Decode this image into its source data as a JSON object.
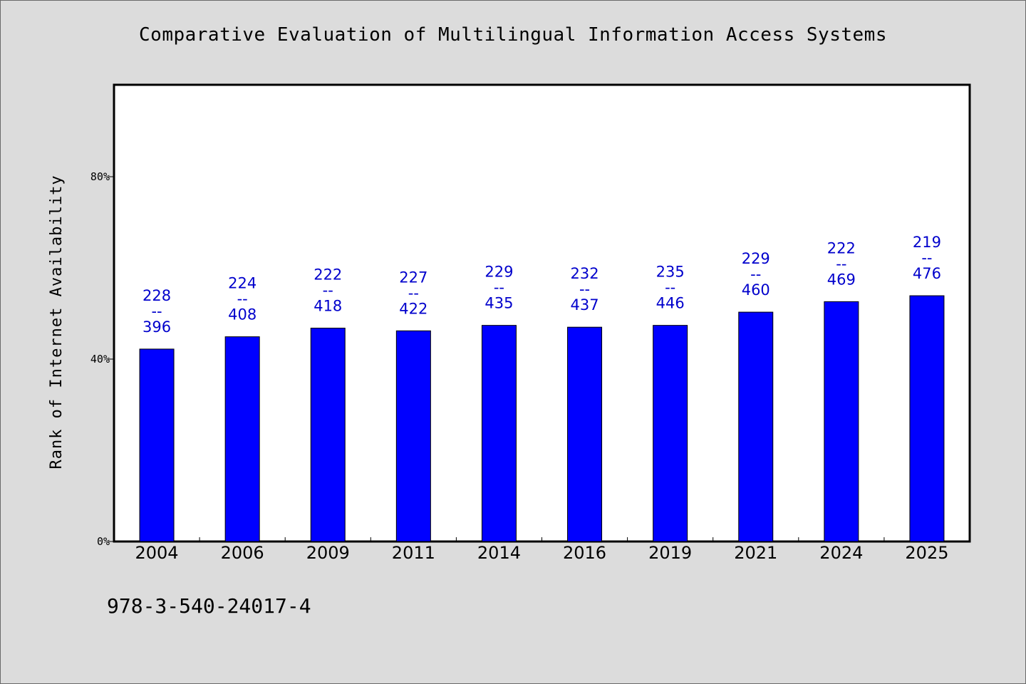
{
  "chart_data": {
    "type": "bar",
    "title": "Comparative Evaluation of Multilingual Information Access Systems",
    "ylabel": "Rank of Internet Availability",
    "xlabel": "",
    "categories": [
      "2004",
      "2006",
      "2009",
      "2011",
      "2014",
      "2016",
      "2019",
      "2021",
      "2024",
      "2025"
    ],
    "values": [
      42.2,
      44.9,
      46.8,
      46.2,
      47.4,
      47.0,
      47.4,
      50.3,
      52.6,
      53.9
    ],
    "value_unit": "percent",
    "annotations": [
      {
        "top": "228",
        "sep": "--",
        "bottom": "396"
      },
      {
        "top": "224",
        "sep": "--",
        "bottom": "408"
      },
      {
        "top": "222",
        "sep": "--",
        "bottom": "418"
      },
      {
        "top": "227",
        "sep": "--",
        "bottom": "422"
      },
      {
        "top": "229",
        "sep": "--",
        "bottom": "435"
      },
      {
        "top": "232",
        "sep": "--",
        "bottom": "437"
      },
      {
        "top": "235",
        "sep": "--",
        "bottom": "446"
      },
      {
        "top": "229",
        "sep": "--",
        "bottom": "460"
      },
      {
        "top": "222",
        "sep": "--",
        "bottom": "469"
      },
      {
        "top": "219",
        "sep": "--",
        "bottom": "476"
      }
    ],
    "ylim": [
      0,
      100
    ],
    "yticks": [
      0,
      40,
      80
    ],
    "ytick_labels": [
      "0%",
      "40%",
      "80%"
    ],
    "grid": false,
    "bar_color": "#0000ff",
    "label_color": "#0000cc",
    "background_color": "#dcdcdc",
    "plot_background_color": "#ffffff"
  },
  "footer": {
    "code": "978-3-540-24017-4"
  }
}
